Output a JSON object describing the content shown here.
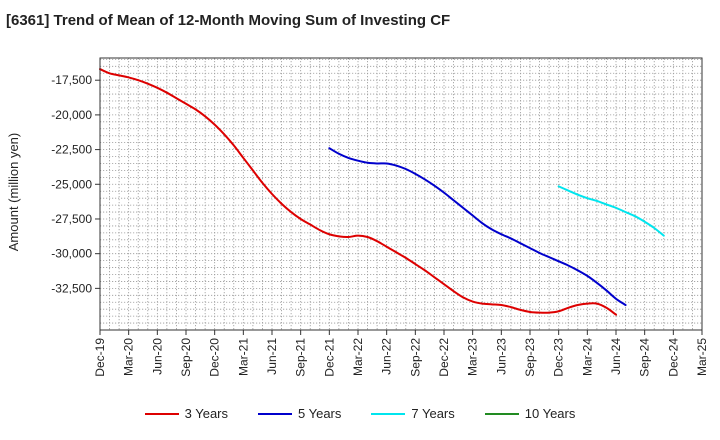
{
  "chart_data": {
    "type": "line",
    "title": "[6361]  Trend of Mean of 12-Month Moving Sum of Investing CF",
    "ylabel": "Amount (million yen)",
    "xlabel": "",
    "ylim": [
      -35500,
      -15900
    ],
    "yticks": [
      -17500,
      -20000,
      -22500,
      -25000,
      -27500,
      -30000,
      -32500
    ],
    "ytick_labels": [
      "-17,500",
      "-20,000",
      "-22,500",
      "-25,000",
      "-27,500",
      "-30,000",
      "-32,500"
    ],
    "x_start": "Dec-19",
    "x_range_months": [
      0,
      63
    ],
    "x_tick_labels": [
      "Dec-19",
      "Mar-20",
      "Jun-20",
      "Sep-20",
      "Dec-20",
      "Mar-21",
      "Jun-21",
      "Sep-21",
      "Dec-21",
      "Mar-22",
      "Jun-22",
      "Sep-22",
      "Dec-22",
      "Mar-23",
      "Jun-23",
      "Sep-23",
      "Dec-23",
      "Mar-24",
      "Jun-24",
      "Sep-24",
      "Dec-24",
      "Mar-25"
    ],
    "grid": true,
    "legend_position": "bottom",
    "series": [
      {
        "name": "3 Years",
        "color": "#dd0000",
        "start_month": 0,
        "values": [
          -16700,
          -17000,
          -17150,
          -17300,
          -17500,
          -17750,
          -18050,
          -18400,
          -18800,
          -19200,
          -19600,
          -20100,
          -20700,
          -21400,
          -22200,
          -23100,
          -24000,
          -24900,
          -25700,
          -26400,
          -27000,
          -27500,
          -27900,
          -28300,
          -28600,
          -28750,
          -28800,
          -28700,
          -28800,
          -29100,
          -29500,
          -29900,
          -30300,
          -30750,
          -31200,
          -31700,
          -32200,
          -32700,
          -33150,
          -33450,
          -33600,
          -33650,
          -33700,
          -33850,
          -34050,
          -34200,
          -34250,
          -34250,
          -34150,
          -33900,
          -33700,
          -33600,
          -33600,
          -33900,
          -34400
        ]
      },
      {
        "name": "5 Years",
        "color": "#0000cc",
        "start_month": 24,
        "values": [
          -22400,
          -22800,
          -23100,
          -23300,
          -23450,
          -23500,
          -23500,
          -23650,
          -23900,
          -24250,
          -24650,
          -25100,
          -25600,
          -26150,
          -26700,
          -27250,
          -27800,
          -28250,
          -28600,
          -28900,
          -29250,
          -29600,
          -29950,
          -30250,
          -30550,
          -30850,
          -31200,
          -31600,
          -32100,
          -32650,
          -33250,
          -33700
        ]
      },
      {
        "name": "7 Years",
        "color": "#00e5ee",
        "start_month": 48,
        "values": [
          -25150,
          -25450,
          -25750,
          -26000,
          -26200,
          -26450,
          -26700,
          -27000,
          -27300,
          -27700,
          -28150,
          -28700
        ]
      },
      {
        "name": "10 Years",
        "color": "#228b22",
        "start_month": 0,
        "values": []
      }
    ]
  }
}
